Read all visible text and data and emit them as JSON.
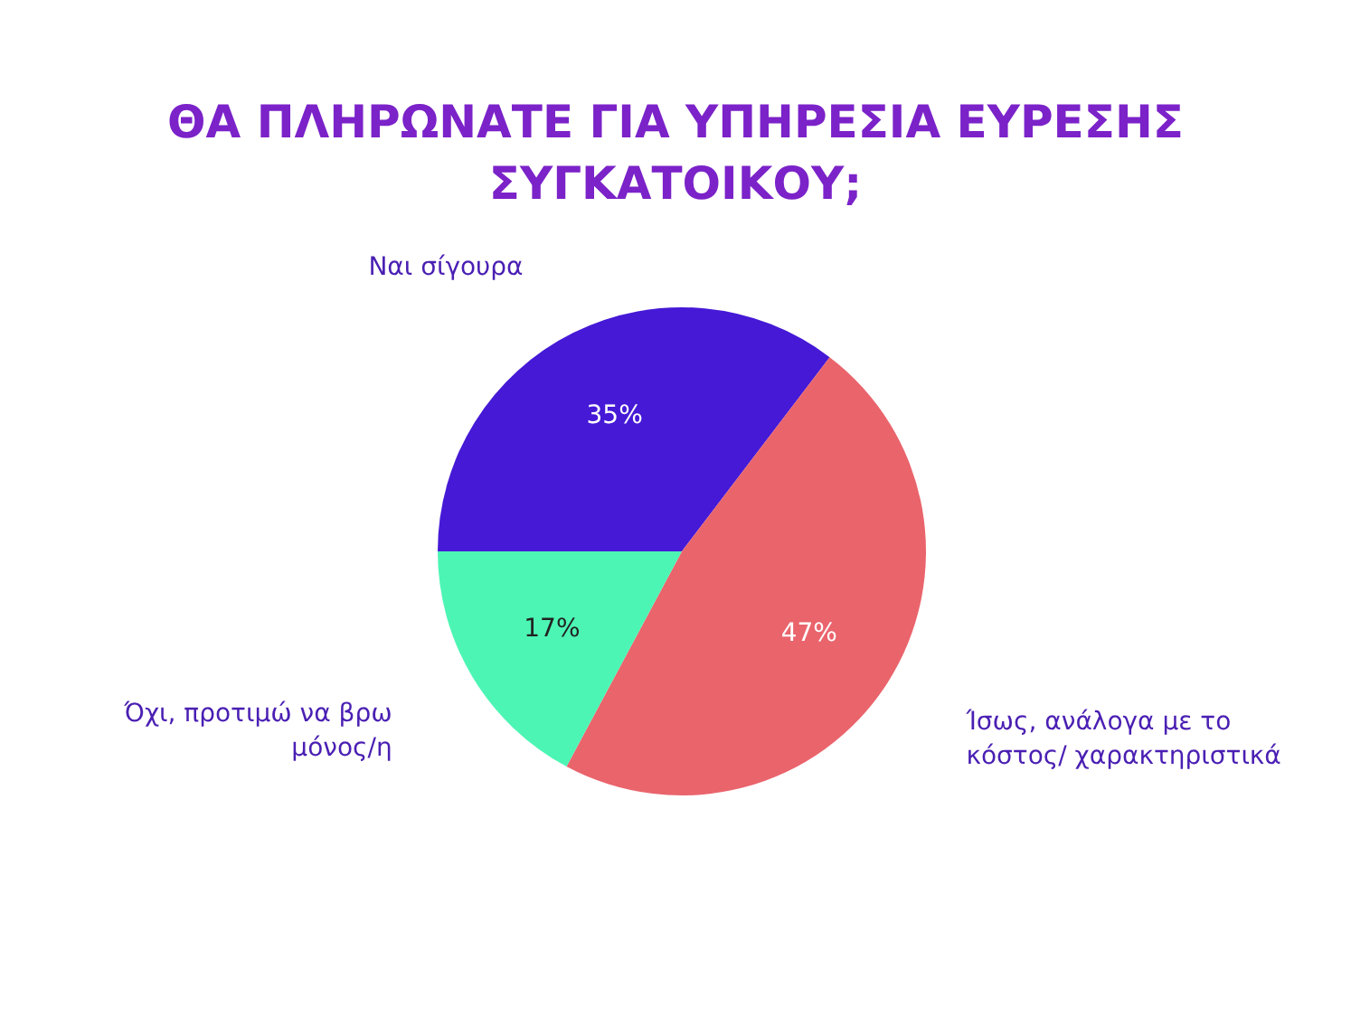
{
  "chart_data": {
    "type": "pie",
    "title": [
      "ΘΑ ΠΛΗΡΩΝΑΤΕ ΓΙΑ ΥΠΗΡΕΣΙΑ ΕΥΡΕΣΗΣ",
      "ΣΥΓΚΑΤΟΙΚΟΥ;"
    ],
    "categories": [
      "Ναι σίγουρα",
      "Ίσως, ανάλογα με το κόστος/ χαρακτηριστικά",
      "Όχι, προτιμώ να βρω μόνος/η"
    ],
    "values": [
      35,
      47,
      17
    ],
    "colors": [
      "#4519d6",
      "#ea646c",
      "#4cf5b4"
    ],
    "value_labels": [
      "35%",
      "47%",
      "17%"
    ]
  }
}
